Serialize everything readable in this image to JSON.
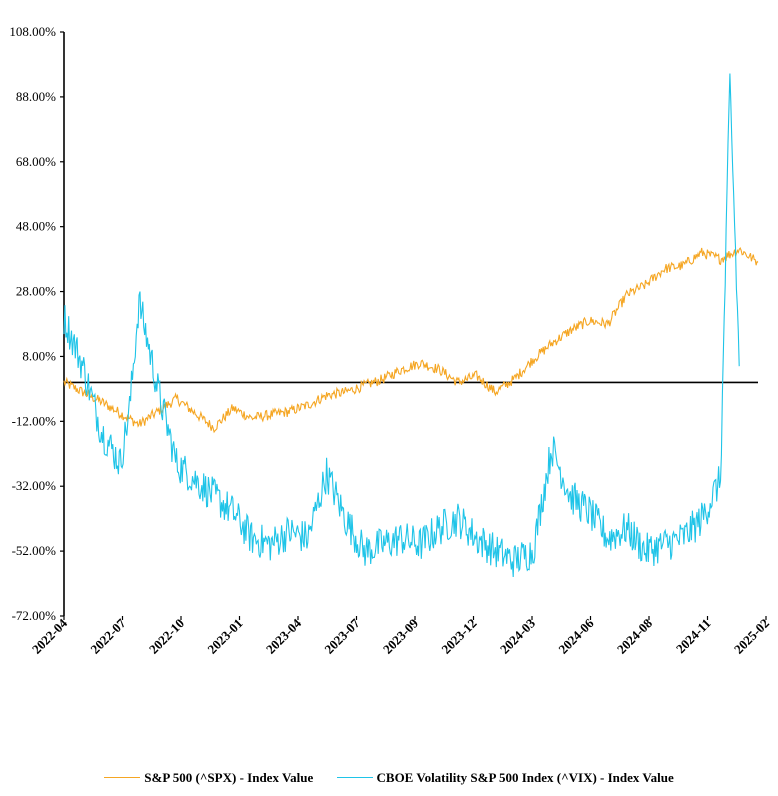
{
  "chart_data": {
    "type": "line",
    "title": "",
    "xlabel": "",
    "ylabel": "",
    "y_tick_labels": [
      "108.00%",
      "88.00%",
      "68.00%",
      "48.00%",
      "28.00%",
      "8.00%",
      "-12.00%",
      "-32.00%",
      "-52.00%",
      "-72.00%"
    ],
    "ylim": [
      -72,
      108
    ],
    "x_tick_labels": [
      "2022-04",
      "2022-07",
      "2022-10",
      "2023-01",
      "2023-04",
      "2023-07",
      "2023-09",
      "2023-12",
      "2024-03",
      "2024-06",
      "2024-08",
      "2024-11",
      "2025-02"
    ],
    "baseline": 0,
    "grid": false,
    "legend_position": "bottom",
    "series": [
      {
        "name": "S&P 500 (^SPX) - Index Value",
        "color": "#F5A623",
        "x": [
          0,
          2,
          4,
          6,
          8,
          9,
          10,
          11,
          12,
          13,
          14,
          15,
          16,
          17,
          18,
          19,
          20,
          21,
          22,
          23,
          24,
          25,
          26,
          27,
          28,
          29,
          30,
          31,
          32,
          33,
          34,
          35,
          36,
          37
        ],
        "values": [
          0,
          -6,
          -13,
          -5,
          -14,
          -8,
          -11,
          -10,
          -9,
          -7,
          -4,
          -3,
          -1,
          1,
          4,
          6,
          4,
          0,
          2,
          -3,
          1,
          7,
          12,
          16,
          19,
          18,
          27,
          30,
          35,
          36,
          40,
          38,
          41,
          37
        ]
      },
      {
        "name": "CBOE Volatility S&P 500 Index (^VIX) - Index Value",
        "color": "#1FC4E8",
        "x": [
          0,
          1,
          2,
          3,
          3.5,
          4,
          5,
          6,
          7,
          8,
          9,
          10,
          11,
          12,
          13,
          14,
          15,
          16,
          17,
          18,
          19,
          20,
          21,
          22,
          23,
          24,
          25,
          26,
          27,
          28,
          29,
          30,
          31,
          32,
          33,
          34,
          35,
          35.5,
          36
        ],
        "values": [
          20,
          5,
          -15,
          -25,
          -8,
          25,
          -2,
          -25,
          -30,
          -35,
          -40,
          -48,
          -50,
          -46,
          -48,
          -28,
          -42,
          -52,
          -50,
          -48,
          -50,
          -45,
          -42,
          -48,
          -52,
          -55,
          -52,
          -20,
          -35,
          -40,
          -48,
          -45,
          -52,
          -50,
          -48,
          -42,
          -30,
          93,
          5
        ]
      }
    ]
  }
}
